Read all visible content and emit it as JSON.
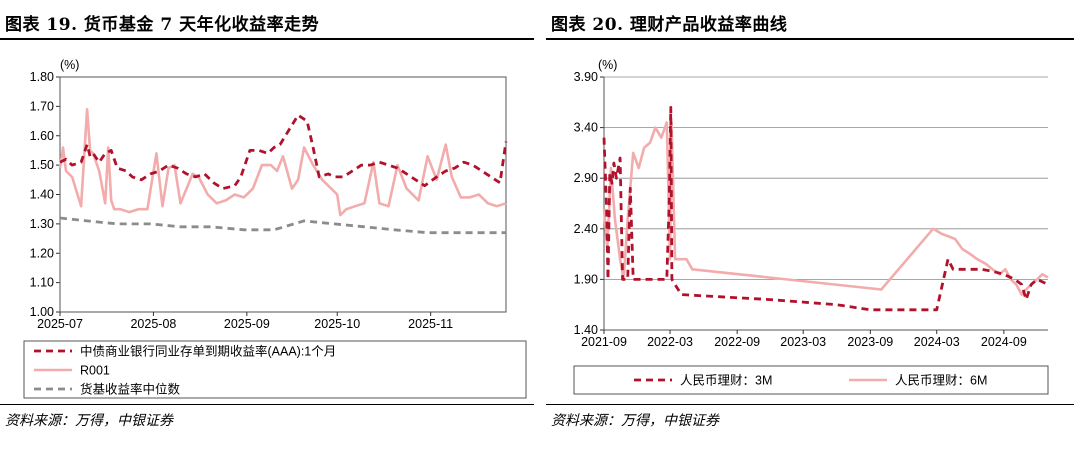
{
  "source_note": "资料来源：万得，中银证券",
  "chart_data": [
    {
      "type": "line",
      "title": "图表 19. 货币基金 7 天年化收益率走势",
      "unit_label": "(%)",
      "ylim": [
        1.0,
        1.8
      ],
      "yticks": [
        "1.00",
        "1.10",
        "1.20",
        "1.30",
        "1.40",
        "1.50",
        "1.60",
        "1.70",
        "1.80"
      ],
      "x_range": [
        "2025-07-01",
        "2025-11-26"
      ],
      "x_ticks": [
        "2025-07",
        "2025-08",
        "2025-09",
        "2025-10",
        "2025-11"
      ],
      "legend_position": "bottom",
      "grid": false,
      "series": [
        {
          "name": "中债商业银行同业存单到期收益率(AAA):1个月",
          "color": "#B0112B",
          "style": "dashed",
          "x": [
            "2025-07-01",
            "2025-07-03",
            "2025-07-05",
            "2025-07-08",
            "2025-07-10",
            "2025-07-11",
            "2025-07-12",
            "2025-07-14",
            "2025-07-16",
            "2025-07-18",
            "2025-07-20",
            "2025-07-23",
            "2025-07-25",
            "2025-07-28",
            "2025-07-31",
            "2025-08-03",
            "2025-08-06",
            "2025-08-09",
            "2025-08-12",
            "2025-08-15",
            "2025-08-18",
            "2025-08-21",
            "2025-08-24",
            "2025-08-28",
            "2025-08-30",
            "2025-09-02",
            "2025-09-05",
            "2025-09-08",
            "2025-09-10",
            "2025-09-12",
            "2025-09-15",
            "2025-09-18",
            "2025-09-21",
            "2025-09-23",
            "2025-09-25",
            "2025-09-28",
            "2025-09-30",
            "2025-10-03",
            "2025-10-06",
            "2025-10-09",
            "2025-10-12",
            "2025-10-15",
            "2025-10-18",
            "2025-10-21",
            "2025-10-24",
            "2025-10-27",
            "2025-10-30",
            "2025-11-03",
            "2025-11-06",
            "2025-11-09",
            "2025-11-12",
            "2025-11-15",
            "2025-11-18",
            "2025-11-21",
            "2025-11-24",
            "2025-11-26"
          ],
          "y": [
            1.51,
            1.52,
            1.5,
            1.51,
            1.57,
            1.53,
            1.54,
            1.51,
            1.54,
            1.55,
            1.49,
            1.48,
            1.46,
            1.45,
            1.47,
            1.48,
            1.5,
            1.49,
            1.47,
            1.46,
            1.47,
            1.44,
            1.42,
            1.43,
            1.46,
            1.55,
            1.55,
            1.54,
            1.56,
            1.57,
            1.62,
            1.67,
            1.65,
            1.56,
            1.46,
            1.47,
            1.46,
            1.46,
            1.48,
            1.5,
            1.5,
            1.51,
            1.5,
            1.49,
            1.47,
            1.45,
            1.43,
            1.46,
            1.48,
            1.49,
            1.51,
            1.5,
            1.48,
            1.46,
            1.44,
            1.58
          ]
        },
        {
          "name": "R001",
          "color": "#F2ACAC",
          "style": "solid",
          "x": [
            "2025-07-01",
            "2025-07-02",
            "2025-07-03",
            "2025-07-05",
            "2025-07-08",
            "2025-07-10",
            "2025-07-11",
            "2025-07-12",
            "2025-07-14",
            "2025-07-16",
            "2025-07-17",
            "2025-07-18",
            "2025-07-19",
            "2025-07-21",
            "2025-07-24",
            "2025-07-27",
            "2025-07-30",
            "2025-08-02",
            "2025-08-04",
            "2025-08-06",
            "2025-08-08",
            "2025-08-10",
            "2025-08-12",
            "2025-08-14",
            "2025-08-16",
            "2025-08-19",
            "2025-08-22",
            "2025-08-25",
            "2025-08-28",
            "2025-08-31",
            "2025-09-03",
            "2025-09-06",
            "2025-09-09",
            "2025-09-11",
            "2025-09-13",
            "2025-09-16",
            "2025-09-18",
            "2025-09-20",
            "2025-09-23",
            "2025-09-26",
            "2025-09-29",
            "2025-10-01",
            "2025-10-02",
            "2025-10-04",
            "2025-10-07",
            "2025-10-10",
            "2025-10-13",
            "2025-10-15",
            "2025-10-18",
            "2025-10-21",
            "2025-10-24",
            "2025-10-28",
            "2025-10-31",
            "2025-11-03",
            "2025-11-06",
            "2025-11-08",
            "2025-11-11",
            "2025-11-14",
            "2025-11-17",
            "2025-11-20",
            "2025-11-23",
            "2025-11-26"
          ],
          "y": [
            1.49,
            1.56,
            1.48,
            1.46,
            1.36,
            1.69,
            1.55,
            1.54,
            1.48,
            1.37,
            1.56,
            1.38,
            1.35,
            1.35,
            1.34,
            1.35,
            1.35,
            1.54,
            1.36,
            1.49,
            1.5,
            1.37,
            1.42,
            1.47,
            1.46,
            1.4,
            1.37,
            1.38,
            1.4,
            1.39,
            1.42,
            1.5,
            1.5,
            1.48,
            1.53,
            1.42,
            1.45,
            1.56,
            1.5,
            1.45,
            1.42,
            1.4,
            1.33,
            1.35,
            1.36,
            1.37,
            1.51,
            1.37,
            1.36,
            1.5,
            1.42,
            1.38,
            1.53,
            1.45,
            1.57,
            1.46,
            1.39,
            1.39,
            1.4,
            1.37,
            1.36,
            1.37
          ]
        },
        {
          "name": "货基收益率中位数",
          "color": "#8C8C8C",
          "style": "dashed",
          "x": [
            "2025-07-01",
            "2025-07-10",
            "2025-07-20",
            "2025-07-31",
            "2025-08-10",
            "2025-08-20",
            "2025-08-31",
            "2025-09-10",
            "2025-09-20",
            "2025-09-30",
            "2025-10-10",
            "2025-10-20",
            "2025-10-31",
            "2025-11-10",
            "2025-11-20",
            "2025-11-26"
          ],
          "y": [
            1.32,
            1.31,
            1.3,
            1.3,
            1.29,
            1.29,
            1.28,
            1.28,
            1.31,
            1.3,
            1.29,
            1.28,
            1.27,
            1.27,
            1.27,
            1.27
          ]
        }
      ]
    },
    {
      "type": "line",
      "title": "图表 20. 理财产品收益率曲线",
      "unit_label": "(%)",
      "ylim": [
        1.4,
        3.9
      ],
      "yticks": [
        "1.40",
        "1.90",
        "2.40",
        "2.90",
        "3.40",
        "3.90"
      ],
      "x_range": [
        "2021-09-01",
        "2024-12-31"
      ],
      "x_ticks": [
        "2021-09",
        "2022-03",
        "2022-09",
        "2023-03",
        "2023-09",
        "2024-03",
        "2024-09"
      ],
      "legend_position": "bottom",
      "grid": true,
      "series": [
        {
          "name": "人民币理财：3M",
          "color": "#B0112B",
          "style": "dashed",
          "x": [
            "2021-09-01",
            "2021-09-08",
            "2021-09-12",
            "2021-09-17",
            "2021-09-23",
            "2021-09-28",
            "2021-10-05",
            "2021-10-15",
            "2021-10-22",
            "2021-10-30",
            "2021-11-05",
            "2021-11-12",
            "2021-11-20",
            "2021-12-01",
            "2021-12-10",
            "2021-12-20",
            "2022-01-01",
            "2022-02-01",
            "2022-02-20",
            "2022-02-27",
            "2022-03-03",
            "2022-03-06",
            "2022-04-01",
            "2022-12-01",
            "2023-06-01",
            "2023-09-01",
            "2024-03-01",
            "2024-04-01",
            "2024-04-15",
            "2024-05-01",
            "2024-06-01",
            "2024-07-01",
            "2024-08-01",
            "2024-09-01",
            "2024-10-01",
            "2024-10-20",
            "2024-11-01",
            "2024-11-15",
            "2024-12-01",
            "2024-12-31"
          ],
          "y": [
            3.3,
            2.6,
            1.9,
            2.95,
            2.85,
            3.05,
            2.9,
            3.1,
            1.9,
            1.9,
            1.9,
            2.8,
            1.9,
            1.9,
            1.9,
            1.9,
            1.9,
            1.9,
            1.9,
            2.7,
            3.6,
            1.9,
            1.75,
            1.7,
            1.65,
            1.6,
            1.6,
            2.1,
            2.0,
            2.0,
            2.0,
            2.0,
            1.98,
            1.95,
            1.9,
            1.85,
            1.7,
            1.85,
            1.9,
            1.85
          ]
        },
        {
          "name": "人民币理财：6M",
          "color": "#F2ACAC",
          "style": "solid",
          "x": [
            "2021-09-01",
            "2021-09-10",
            "2021-09-20",
            "2021-10-01",
            "2021-10-15",
            "2021-10-25",
            "2021-11-05",
            "2021-11-20",
            "2021-12-05",
            "2021-12-20",
            "2022-01-05",
            "2022-01-20",
            "2022-02-05",
            "2022-02-20",
            "2022-03-01",
            "2022-03-05",
            "2022-03-15",
            "2022-04-15",
            "2022-05-01",
            "2023-10-01",
            "2024-02-20",
            "2024-03-15",
            "2024-04-20",
            "2024-05-10",
            "2024-06-01",
            "2024-06-20",
            "2024-07-15",
            "2024-08-01",
            "2024-08-20",
            "2024-09-05",
            "2024-09-20",
            "2024-10-05",
            "2024-10-20",
            "2024-11-01",
            "2024-11-15",
            "2024-12-01",
            "2024-12-15",
            "2024-12-31"
          ],
          "y": [
            2.6,
            2.2,
            3.0,
            2.5,
            2.1,
            1.9,
            2.5,
            3.15,
            3.0,
            3.2,
            3.25,
            3.4,
            3.3,
            3.45,
            2.1,
            3.45,
            2.1,
            2.1,
            2.0,
            1.8,
            2.4,
            2.35,
            2.3,
            2.2,
            2.15,
            2.1,
            2.05,
            2.0,
            1.95,
            2.0,
            1.9,
            1.85,
            1.75,
            1.8,
            1.85,
            1.9,
            1.95,
            1.92
          ]
        }
      ]
    }
  ]
}
